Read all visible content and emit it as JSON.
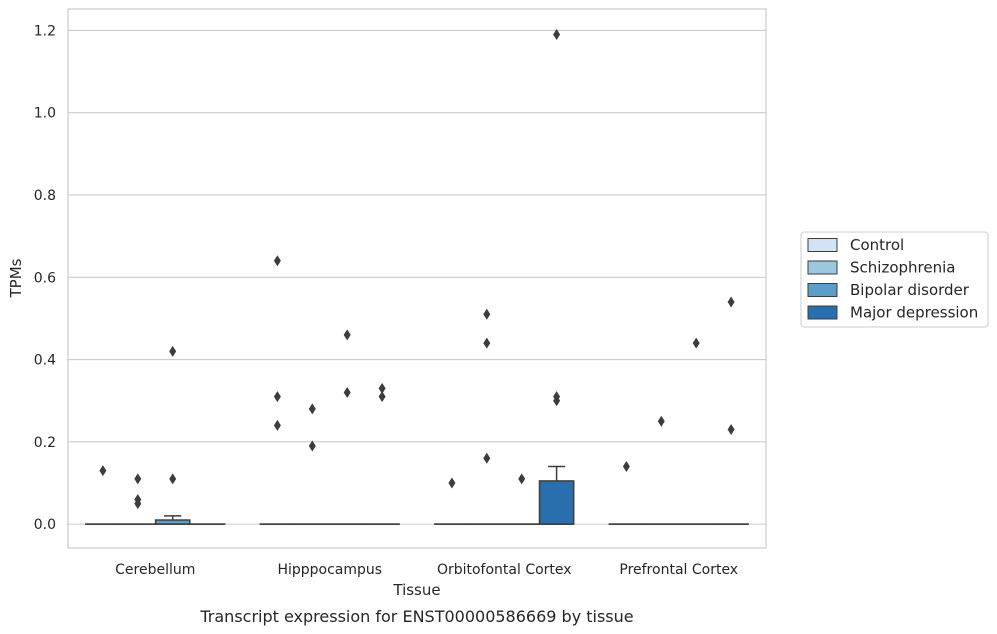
{
  "caption": "Transcript expression for ENST00000586669 by tissue",
  "chart_data": {
    "type": "box",
    "xlabel": "Tissue",
    "ylabel": "TPMs",
    "ylim": [
      -0.058,
      1.252
    ],
    "yticks": [
      0.0,
      0.2,
      0.4,
      0.6,
      0.8,
      1.0,
      1.2
    ],
    "ytick_labels": [
      "0.0",
      "0.2",
      "0.4",
      "0.6",
      "0.8",
      "1.0",
      "1.2"
    ],
    "grid": true,
    "legend_position": "right",
    "categories": [
      "Cerebellum",
      "Hipppocampus",
      "Orbitofontal Cortex",
      "Prefrontal Cortex"
    ],
    "series": [
      {
        "name": "Control",
        "color": "#d2e3f3",
        "boxes": [
          {
            "q1": 0,
            "median": 0,
            "q3": 0,
            "whisker_low": 0,
            "whisker_high": 0,
            "outliers": [
              0.13
            ]
          },
          {
            "q1": 0,
            "median": 0,
            "q3": 0,
            "whisker_low": 0,
            "whisker_high": 0,
            "outliers": [
              0.64,
              0.31,
              0.24
            ]
          },
          {
            "q1": 0,
            "median": 0,
            "q3": 0,
            "whisker_low": 0,
            "whisker_high": 0,
            "outliers": [
              0.1
            ]
          },
          {
            "q1": 0,
            "median": 0,
            "q3": 0,
            "whisker_low": 0,
            "whisker_high": 0,
            "outliers": [
              0.14
            ]
          }
        ]
      },
      {
        "name": "Schizophrenia",
        "color": "#9ac8e0",
        "boxes": [
          {
            "q1": 0,
            "median": 0,
            "q3": 0,
            "whisker_low": 0,
            "whisker_high": 0,
            "outliers": [
              0.11,
              0.06,
              0.05
            ]
          },
          {
            "q1": 0,
            "median": 0,
            "q3": 0,
            "whisker_low": 0,
            "whisker_high": 0,
            "outliers": [
              0.28,
              0.19
            ]
          },
          {
            "q1": 0,
            "median": 0,
            "q3": 0,
            "whisker_low": 0,
            "whisker_high": 0,
            "outliers": [
              0.51,
              0.44,
              0.16
            ]
          },
          {
            "q1": 0,
            "median": 0,
            "q3": 0,
            "whisker_low": 0,
            "whisker_high": 0,
            "outliers": [
              0.25
            ]
          }
        ]
      },
      {
        "name": "Bipolar disorder",
        "color": "#5a9ec9",
        "boxes": [
          {
            "q1": 0,
            "median": 0,
            "q3": 0.01,
            "whisker_low": 0,
            "whisker_high": 0.02,
            "outliers": [
              0.42,
              0.11
            ]
          },
          {
            "q1": 0,
            "median": 0,
            "q3": 0,
            "whisker_low": 0,
            "whisker_high": 0,
            "outliers": [
              0.46,
              0.32
            ]
          },
          {
            "q1": 0,
            "median": 0,
            "q3": 0,
            "whisker_low": 0,
            "whisker_high": 0,
            "outliers": [
              0.11
            ]
          },
          {
            "q1": 0,
            "median": 0,
            "q3": 0,
            "whisker_low": 0,
            "whisker_high": 0,
            "outliers": [
              0.44
            ]
          }
        ]
      },
      {
        "name": "Major depression",
        "color": "#2a6fad",
        "boxes": [
          {
            "q1": 0,
            "median": 0,
            "q3": 0,
            "whisker_low": 0,
            "whisker_high": 0,
            "outliers": []
          },
          {
            "q1": 0,
            "median": 0,
            "q3": 0,
            "whisker_low": 0,
            "whisker_high": 0,
            "outliers": [
              0.33,
              0.31
            ]
          },
          {
            "q1": 0,
            "median": 0,
            "q3": 0.105,
            "whisker_low": 0,
            "whisker_high": 0.14,
            "outliers": [
              1.19,
              0.31,
              0.3
            ]
          },
          {
            "q1": 0,
            "median": 0,
            "q3": 0,
            "whisker_low": 0,
            "whisker_high": 0,
            "outliers": [
              0.54,
              0.23
            ]
          }
        ]
      }
    ]
  }
}
